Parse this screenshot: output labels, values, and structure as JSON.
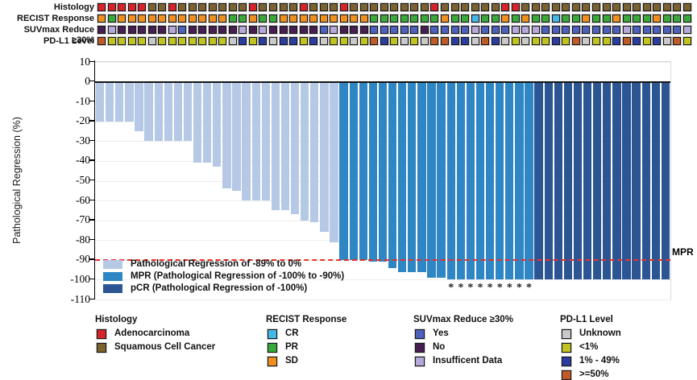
{
  "tracks": {
    "rows": [
      {
        "label": "Histology",
        "values": [
          "Adenocarcinoma",
          "Adenocarcinoma",
          "Adenocarcinoma",
          "Adenocarcinoma",
          "Adenocarcinoma",
          "Squamous Cell Cancer",
          "Squamous Cell Cancer",
          "Adenocarcinoma",
          "Squamous Cell Cancer",
          "Squamous Cell Cancer",
          "Squamous Cell Cancer",
          "Squamous Cell Cancer",
          "Squamous Cell Cancer",
          "Squamous Cell Cancer",
          "Squamous Cell Cancer",
          "Adenocarcinoma",
          "Squamous Cell Cancer",
          "Squamous Cell Cancer",
          "Squamous Cell Cancer",
          "Squamous Cell Cancer",
          "Adenocarcinoma",
          "Squamous Cell Cancer",
          "Squamous Cell Cancer",
          "Squamous Cell Cancer",
          "Adenocarcinoma",
          "Squamous Cell Cancer",
          "Squamous Cell Cancer",
          "Squamous Cell Cancer",
          "Squamous Cell Cancer",
          "Squamous Cell Cancer",
          "Squamous Cell Cancer",
          "Squamous Cell Cancer",
          "Squamous Cell Cancer",
          "Adenocarcinoma",
          "Squamous Cell Cancer",
          "Squamous Cell Cancer",
          "Squamous Cell Cancer",
          "Squamous Cell Cancer",
          "Squamous Cell Cancer",
          "Squamous Cell Cancer",
          "Adenocarcinoma",
          "Adenocarcinoma",
          "Squamous Cell Cancer",
          "Squamous Cell Cancer",
          "Squamous Cell Cancer",
          "Squamous Cell Cancer",
          "Squamous Cell Cancer",
          "Squamous Cell Cancer",
          "Squamous Cell Cancer",
          "Squamous Cell Cancer",
          "Squamous Cell Cancer",
          "Squamous Cell Cancer",
          "Squamous Cell Cancer",
          "Squamous Cell Cancer",
          "Squamous Cell Cancer",
          "Squamous Cell Cancer",
          "Squamous Cell Cancer",
          "Squamous Cell Cancer",
          "Squamous Cell Cancer"
        ]
      },
      {
        "label": "RECIST Response",
        "values": [
          "SD",
          "PR",
          "SD",
          "SD",
          "SD",
          "SD",
          "SD",
          "SD",
          "SD",
          "SD",
          "SD",
          "SD",
          "SD",
          "PR",
          "PR",
          "SD",
          "PR",
          "PR",
          "SD",
          "SD",
          "SD",
          "SD",
          "SD",
          "SD",
          "SD",
          "SD",
          "SD",
          "PR",
          "PR",
          "PR",
          "PR",
          "PR",
          "PR",
          "PR",
          "SD",
          "PR",
          "PR",
          "CR",
          "PR",
          "PR",
          "SD",
          "PR",
          "SD",
          "PR",
          "PR",
          "CR",
          "PR",
          "PR",
          "SD",
          "PR",
          "PR",
          "SD",
          "PR",
          "PR",
          "PR",
          "SD",
          "PR",
          "PR",
          "PR"
        ]
      },
      {
        "label": "SUVmax Reduce ≥30%",
        "values": [
          "No",
          "Insufficent Data",
          "No",
          "No",
          "No",
          "No",
          "No",
          "Insufficent Data",
          "Yes",
          "No",
          "No",
          "No",
          "No",
          "No",
          "Insufficent Data",
          "No",
          "Insufficent Data",
          "No",
          "No",
          "No",
          "No",
          "No",
          "Yes",
          "Insufficent Data",
          "No",
          "No",
          "No",
          "Yes",
          "Yes",
          "Yes",
          "Yes",
          "Yes",
          "No",
          "Yes",
          "Yes",
          "Yes",
          "Yes",
          "Insufficent Data",
          "Yes",
          "Yes",
          "Yes",
          "Insufficent Data",
          "Insufficent Data",
          "Insufficent Data",
          "Yes",
          "Yes",
          "Yes",
          "Yes",
          "Yes",
          "Yes",
          "Yes",
          "Yes",
          "Insufficent Data",
          "Yes",
          "Yes",
          "Yes",
          "Yes",
          "Yes",
          "Insufficent Data"
        ]
      },
      {
        "label": "PD-L1 Level",
        "values": [
          ">=50%",
          "<1%",
          "<1%",
          "<1%",
          "<1%",
          "Unknown",
          "<1%",
          "<1%",
          "<1%",
          "<1%",
          "<1%",
          "<1%",
          "<1%",
          "Unknown",
          "1% - 49%",
          "<1%",
          "1% - 49%",
          "Unknown",
          "1% - 49%",
          "1% - 49%",
          "<1%",
          "1% - 49%",
          "Unknown",
          "<1%",
          "<1%",
          "Unknown",
          "<1%",
          ">=50%",
          "1% - 49%",
          "<1%",
          "Unknown",
          "<1%",
          "Unknown",
          ">=50%",
          ">=50%",
          "1% - 49%",
          "1% - 49%",
          "Unknown",
          ">=50%",
          "1% - 49%",
          "Unknown",
          "<1%",
          "Unknown",
          "<1%",
          "<1%",
          "1% - 49%",
          "<1%",
          ">=50%",
          "Unknown",
          "<1%",
          "<1%",
          "1% - 49%",
          ">=50%",
          "1% - 49%",
          "<1%",
          "1% - 49%",
          "Unknown",
          ">=50%",
          "<1%"
        ]
      }
    ],
    "palette": {
      "Adenocarcinoma": "#d8232a",
      "Squamous Cell Cancer": "#7a6231",
      "CR": "#45b7e6",
      "PR": "#3aa93a",
      "SD": "#ef8f1f",
      "Yes": "#4c60bc",
      "No": "#471e52",
      "Insufficent Data": "#b6a8d8",
      "Unknown": "#c9c9c9",
      "<1%": "#bfc420",
      "1% - 49%": "#2c3da0",
      ">=50%": "#bf5b28"
    }
  },
  "chart_data": {
    "type": "bar",
    "subtype": "waterfall",
    "title": "",
    "xlabel": "",
    "ylabel": "Pathological Regression (%)",
    "ylim": [
      -110,
      10
    ],
    "ytick_step": 10,
    "grid": true,
    "values": [
      -20,
      -20,
      -20,
      -20,
      -25,
      -30,
      -30,
      -30,
      -30,
      -30,
      -41,
      -41,
      -43,
      -54,
      -55,
      -60,
      -60,
      -60,
      -65,
      -65,
      -67,
      -70,
      -71,
      -76,
      -81,
      -90,
      -90,
      -90,
      -91,
      -91,
      -94,
      -96,
      -96,
      -96,
      -99,
      -99,
      -100,
      -100,
      -100,
      -100,
      -100,
      -100,
      -100,
      -100,
      -100,
      -100,
      -100,
      -100,
      -100,
      -100,
      -100,
      -100,
      -100,
      -100,
      -100,
      -100,
      -100,
      -100,
      -100
    ],
    "segments": [
      {
        "label": "Pathological Regression of -89% to 0%",
        "color": "#b5c8e6",
        "count": 25
      },
      {
        "label": "MPR (Pathological Regression of -100% to -90%)",
        "color": "#2f86c4",
        "count": 20
      },
      {
        "label": "pCR (Pathological Regression of -100%)",
        "color": "#2b5593",
        "count": 14
      }
    ],
    "starred_bars": [
      37,
      38,
      39,
      40,
      41,
      42,
      43,
      44,
      45
    ],
    "star_symbol": "*",
    "reference_line": {
      "value": -90,
      "label": "MPR",
      "color": "#e8312a",
      "style": "dashed"
    },
    "legend_position": "inside-bottom-left"
  },
  "legend_panels": [
    {
      "title": "Histology",
      "items": [
        {
          "label": "Adenocarcinoma",
          "color": "#d8232a"
        },
        {
          "label": "Squamous Cell Cancer",
          "color": "#7a6231"
        }
      ]
    },
    {
      "title": "RECIST Response",
      "items": [
        {
          "label": "CR",
          "color": "#45b7e6"
        },
        {
          "label": "PR",
          "color": "#3aa93a"
        },
        {
          "label": "SD",
          "color": "#ef8f1f"
        }
      ]
    },
    {
      "title": "SUVmax Reduce ≥30%",
      "items": [
        {
          "label": "Yes",
          "color": "#4c60bc"
        },
        {
          "label": "No",
          "color": "#471e52"
        },
        {
          "label": "Insufficent Data",
          "color": "#b6a8d8"
        }
      ]
    },
    {
      "title": "PD-L1 Level",
      "items": [
        {
          "label": "Unknown",
          "color": "#c9c9c9"
        },
        {
          "label": "<1%",
          "color": "#bfc420"
        },
        {
          "label": "1% - 49%",
          "color": "#2c3da0"
        },
        {
          "label": ">=50%",
          "color": "#bf5b28"
        }
      ]
    }
  ]
}
